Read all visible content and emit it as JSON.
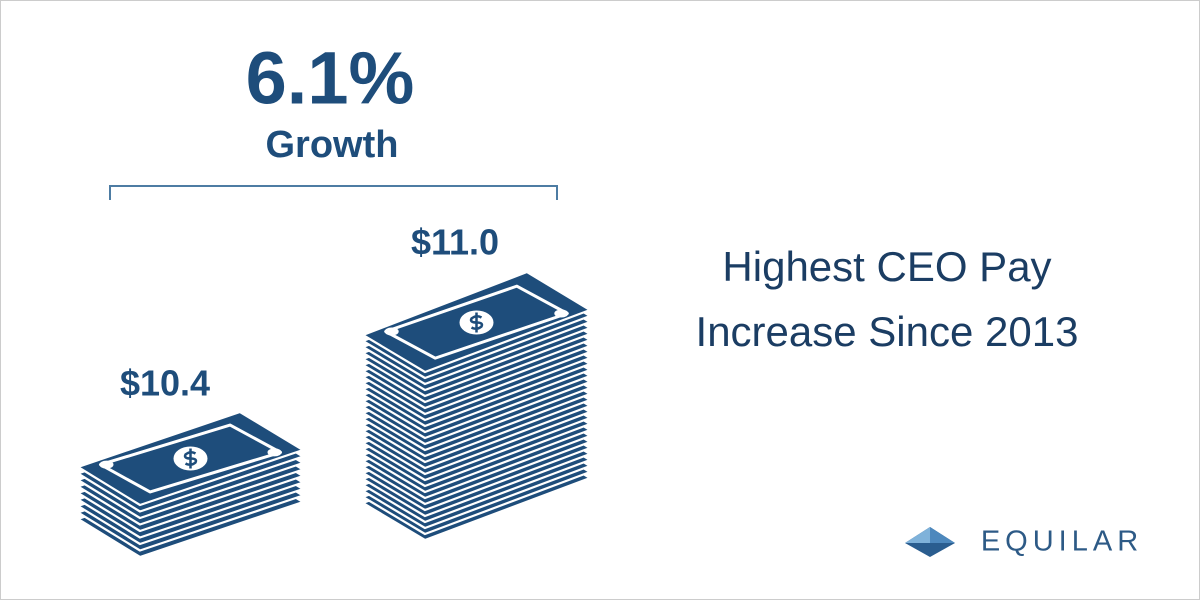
{
  "growth": {
    "value": "6.1%",
    "label": "Growth"
  },
  "stacks": [
    {
      "label": "$10.4"
    },
    {
      "label": "$11.0"
    }
  ],
  "headline": [
    "Highest CEO Pay",
    "Increase Since 2013"
  ],
  "logo": "EQUILAR"
}
